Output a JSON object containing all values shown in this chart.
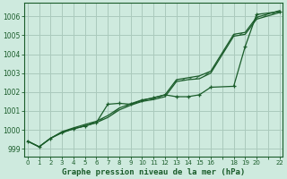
{
  "title": "Graphe pression niveau de la mer (hPa)",
  "background_color": "#ceeade",
  "grid_color": "#aacabc",
  "line_color": "#1a5c2a",
  "xlim": [
    -0.3,
    22.3
  ],
  "ylim": [
    998.6,
    1006.7
  ],
  "xtick_labels": [
    "0",
    "1",
    "2",
    "3",
    "4",
    "5",
    "6",
    "7",
    "8",
    "9",
    "10",
    "11",
    "12",
    "13",
    "14",
    "15",
    "16",
    "",
    "18",
    "19",
    "20",
    "",
    "22"
  ],
  "xtick_positions": [
    0,
    1,
    2,
    3,
    4,
    5,
    6,
    7,
    8,
    9,
    10,
    11,
    12,
    13,
    14,
    15,
    16,
    17,
    18,
    19,
    20,
    21,
    22
  ],
  "ytick_labels": [
    "999",
    "1000",
    "1001",
    "1002",
    "1003",
    "1004",
    "1005",
    "1006"
  ],
  "ytick_positions": [
    999,
    1000,
    1001,
    1002,
    1003,
    1004,
    1005,
    1006
  ],
  "line_trend1_x": [
    0,
    1,
    2,
    3,
    4,
    5,
    6,
    7,
    8,
    9,
    10,
    11,
    12,
    13,
    14,
    15,
    16,
    18,
    19,
    20,
    22
  ],
  "line_trend1_y": [
    999.4,
    999.1,
    999.55,
    999.85,
    1000.05,
    1000.2,
    1000.38,
    1000.65,
    1001.05,
    1001.3,
    1001.5,
    1001.6,
    1001.75,
    1002.55,
    1002.65,
    1002.7,
    1003.0,
    1004.95,
    1005.05,
    1005.85,
    1006.2
  ],
  "line_trend2_x": [
    0,
    1,
    2,
    3,
    4,
    5,
    6,
    7,
    8,
    9,
    10,
    11,
    12,
    13,
    14,
    15,
    16,
    18,
    19,
    20,
    22
  ],
  "line_trend2_y": [
    999.4,
    999.1,
    999.55,
    999.9,
    1000.1,
    1000.28,
    1000.45,
    1000.75,
    1001.15,
    1001.38,
    1001.58,
    1001.68,
    1001.85,
    1002.65,
    1002.75,
    1002.85,
    1003.1,
    1005.05,
    1005.15,
    1005.95,
    1006.3
  ],
  "line_markers_x": [
    0,
    1,
    2,
    3,
    4,
    5,
    6,
    7,
    8,
    9,
    10,
    11,
    12,
    13,
    14,
    15,
    16,
    18,
    19,
    20,
    22
  ],
  "line_markers_y": [
    999.4,
    999.1,
    999.55,
    999.85,
    1000.05,
    1000.2,
    1000.38,
    1001.35,
    1001.4,
    1001.35,
    1001.55,
    1001.7,
    1001.85,
    1001.75,
    1001.75,
    1001.85,
    1002.25,
    1002.3,
    1004.4,
    1006.1,
    1006.25
  ]
}
